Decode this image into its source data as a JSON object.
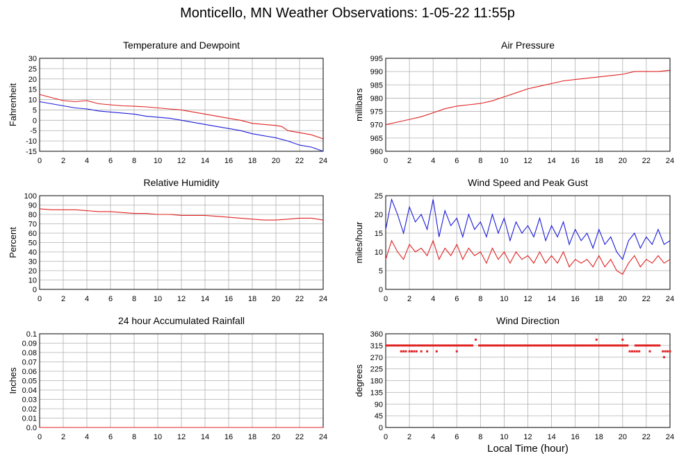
{
  "title": "Monticello, MN Weather Observations: 1-05-22 11:55p",
  "x_axis_label": "Local Time (hour)",
  "colors": {
    "red": "#e02020",
    "blue": "#1a1ad8",
    "grid": "#b0b0b0"
  },
  "chart_data": [
    {
      "id": "temp",
      "type": "line",
      "title": "Temperature and Dewpoint",
      "ylabel": "Fahrenheit",
      "xlim": [
        0,
        24
      ],
      "ylim": [
        -15,
        30
      ],
      "yticks": [
        -15,
        -10,
        -5,
        0,
        5,
        10,
        15,
        20,
        25,
        30
      ],
      "xticks": [
        0,
        2,
        4,
        6,
        8,
        10,
        12,
        14,
        16,
        18,
        20,
        22,
        24
      ],
      "grid": true,
      "series": [
        {
          "color": "red",
          "x": [
            0,
            1,
            2,
            3,
            4,
            5,
            6,
            7,
            8,
            9,
            10,
            11,
            12,
            13,
            14,
            15,
            16,
            17,
            18,
            19,
            20,
            20.5,
            21,
            22,
            23,
            24
          ],
          "values": [
            12.5,
            11,
            9.5,
            9,
            9.5,
            8,
            7.5,
            7,
            6.8,
            6.5,
            6,
            5.5,
            5,
            4,
            3,
            2,
            1,
            0,
            -1.5,
            -2,
            -2.5,
            -3,
            -5,
            -6,
            -7,
            -9
          ]
        },
        {
          "color": "blue",
          "x": [
            0,
            1,
            2,
            3,
            4,
            5,
            6,
            7,
            8,
            9,
            10,
            11,
            12,
            13,
            14,
            15,
            16,
            17,
            18,
            19,
            20,
            21,
            22,
            23,
            24
          ],
          "values": [
            9,
            8,
            7,
            6,
            5.5,
            4.5,
            4,
            3.5,
            3,
            2,
            1.5,
            1,
            0,
            -1,
            -2,
            -3,
            -4,
            -5,
            -6.5,
            -7.5,
            -8.5,
            -10,
            -12,
            -13,
            -15
          ]
        }
      ]
    },
    {
      "id": "pressure",
      "type": "line",
      "title": "Air Pressure",
      "ylabel": "millibars",
      "xlim": [
        0,
        24
      ],
      "ylim": [
        960,
        995
      ],
      "yticks": [
        960,
        965,
        970,
        975,
        980,
        985,
        990,
        995
      ],
      "xticks": [
        0,
        2,
        4,
        6,
        8,
        10,
        12,
        14,
        16,
        18,
        20,
        22,
        24
      ],
      "grid": true,
      "series": [
        {
          "color": "red",
          "x": [
            0,
            1,
            2,
            3,
            4,
            5,
            6,
            7,
            8,
            9,
            10,
            11,
            12,
            13,
            14,
            15,
            16,
            17,
            18,
            19,
            20,
            21,
            22,
            23,
            24
          ],
          "values": [
            970,
            971,
            972,
            973,
            974.5,
            976,
            977,
            977.5,
            978,
            979,
            980.5,
            982,
            983.5,
            984.5,
            985.5,
            986.5,
            987,
            987.5,
            988,
            988.5,
            989,
            990,
            990,
            990,
            990.5
          ]
        }
      ]
    },
    {
      "id": "humidity",
      "type": "line",
      "title": "Relative Humidity",
      "ylabel": "Percent",
      "xlim": [
        0,
        24
      ],
      "ylim": [
        0,
        100
      ],
      "yticks": [
        0,
        10,
        20,
        30,
        40,
        50,
        60,
        70,
        80,
        90,
        100
      ],
      "xticks": [
        0,
        2,
        4,
        6,
        8,
        10,
        12,
        14,
        16,
        18,
        20,
        22,
        24
      ],
      "grid": true,
      "series": [
        {
          "color": "red",
          "x": [
            0,
            1,
            2,
            3,
            4,
            5,
            6,
            7,
            8,
            9,
            10,
            11,
            12,
            13,
            14,
            15,
            16,
            17,
            18,
            19,
            20,
            21,
            22,
            23,
            24
          ],
          "values": [
            86,
            85,
            85,
            85,
            84,
            83,
            83,
            82,
            81,
            81,
            80,
            80,
            79,
            79,
            79,
            78,
            77,
            76,
            75,
            74,
            74,
            75,
            76,
            76,
            74
          ]
        }
      ]
    },
    {
      "id": "wind",
      "type": "line",
      "title": "Wind Speed and Peak Gust",
      "ylabel": "miles/hour",
      "xlim": [
        0,
        24
      ],
      "ylim": [
        0,
        25
      ],
      "yticks": [
        0,
        5,
        10,
        15,
        20,
        25
      ],
      "xticks": [
        0,
        2,
        4,
        6,
        8,
        10,
        12,
        14,
        16,
        18,
        20,
        22,
        24
      ],
      "grid": true,
      "series": [
        {
          "color": "blue",
          "x": [
            0,
            0.5,
            1,
            1.5,
            2,
            2.5,
            3,
            3.5,
            4,
            4.5,
            5,
            5.5,
            6,
            6.5,
            7,
            7.5,
            8,
            8.5,
            9,
            9.5,
            10,
            10.5,
            11,
            11.5,
            12,
            12.5,
            13,
            13.5,
            14,
            14.5,
            15,
            15.5,
            16,
            16.5,
            17,
            17.5,
            18,
            18.5,
            19,
            19.5,
            20,
            20.5,
            21,
            21.5,
            22,
            22.5,
            23,
            23.5,
            24
          ],
          "values": [
            16,
            24,
            20,
            15,
            22,
            18,
            20,
            16,
            24,
            14,
            21,
            17,
            19,
            14,
            20,
            16,
            18,
            14,
            20,
            15,
            19,
            13,
            18,
            15,
            17,
            14,
            19,
            13,
            17,
            14,
            18,
            12,
            16,
            13,
            15,
            11,
            16,
            12,
            14,
            10,
            8,
            13,
            15,
            11,
            14,
            12,
            16,
            12,
            13
          ]
        },
        {
          "color": "red",
          "x": [
            0,
            0.5,
            1,
            1.5,
            2,
            2.5,
            3,
            3.5,
            4,
            4.5,
            5,
            5.5,
            6,
            6.5,
            7,
            7.5,
            8,
            8.5,
            9,
            9.5,
            10,
            10.5,
            11,
            11.5,
            12,
            12.5,
            13,
            13.5,
            14,
            14.5,
            15,
            15.5,
            16,
            16.5,
            17,
            17.5,
            18,
            18.5,
            19,
            19.5,
            20,
            20.5,
            21,
            21.5,
            22,
            22.5,
            23,
            23.5,
            24
          ],
          "values": [
            8,
            13,
            10,
            8,
            12,
            10,
            11,
            9,
            13,
            8,
            11,
            9,
            12,
            8,
            11,
            9,
            10,
            7,
            11,
            8,
            10,
            7,
            10,
            8,
            9,
            7,
            10,
            7,
            9,
            7,
            10,
            6,
            8,
            7,
            8,
            6,
            9,
            6,
            8,
            5,
            4,
            7,
            9,
            6,
            8,
            7,
            9,
            7,
            8
          ]
        }
      ]
    },
    {
      "id": "rain",
      "type": "line",
      "title": "24 hour Accumulated Rainfall",
      "ylabel": "Inches",
      "xlim": [
        0,
        24
      ],
      "ylim": [
        0,
        0.1
      ],
      "yticks": [
        0.0,
        0.01,
        0.02,
        0.03,
        0.04,
        0.05,
        0.06,
        0.07,
        0.08,
        0.09,
        0.1
      ],
      "ytick_labels": [
        "0.0",
        "0.01",
        "0.02",
        "0.03",
        "0.04",
        "0.05",
        "0.06",
        "0.07",
        "0.08",
        "0.09",
        "0.1"
      ],
      "xticks": [
        0,
        2,
        4,
        6,
        8,
        10,
        12,
        14,
        16,
        18,
        20,
        22,
        24
      ],
      "grid": true,
      "series": [
        {
          "color": "red",
          "x": [
            0,
            24
          ],
          "values": [
            0,
            0
          ]
        }
      ]
    },
    {
      "id": "direction",
      "type": "scatter",
      "title": "Wind Direction",
      "ylabel": "degrees",
      "xlabel": "Local Time (hour)",
      "xlim": [
        0,
        24
      ],
      "ylim": [
        0,
        360
      ],
      "yticks": [
        0,
        45,
        90,
        135,
        180,
        225,
        270,
        315,
        360
      ],
      "xticks": [
        0,
        2,
        4,
        6,
        8,
        10,
        12,
        14,
        16,
        18,
        20,
        22,
        24
      ],
      "grid": true,
      "series": [
        {
          "color": "red",
          "segments": [
            [
              0,
              1.2,
              315
            ],
            [
              1.2,
              2.6,
              315
            ],
            [
              2.6,
              7.4,
              315
            ],
            [
              7.8,
              20.5,
              315
            ],
            [
              21,
              23.2,
              315
            ]
          ],
          "points": [
            [
              1.3,
              292.5
            ],
            [
              1.5,
              292.5
            ],
            [
              1.7,
              292.5
            ],
            [
              2.0,
              292.5
            ],
            [
              2.2,
              292.5
            ],
            [
              2.4,
              292.5
            ],
            [
              2.6,
              292.5
            ],
            [
              3.0,
              292.5
            ],
            [
              3.5,
              292.5
            ],
            [
              4.3,
              292.5
            ],
            [
              6.0,
              292.5
            ],
            [
              7.6,
              337.5
            ],
            [
              17.8,
              337.5
            ],
            [
              20.0,
              337.5
            ],
            [
              20.6,
              292.5
            ],
            [
              20.8,
              292.5
            ],
            [
              21.0,
              292.5
            ],
            [
              21.2,
              292.5
            ],
            [
              21.4,
              292.5
            ],
            [
              22.3,
              292.5
            ],
            [
              23.4,
              292.5
            ],
            [
              23.6,
              292.5
            ],
            [
              23.8,
              292.5
            ],
            [
              24.0,
              292.5
            ],
            [
              23.5,
              270
            ]
          ]
        }
      ]
    }
  ]
}
